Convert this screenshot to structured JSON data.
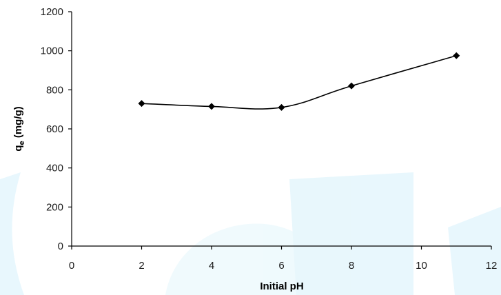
{
  "chart_data": {
    "type": "line",
    "title": "",
    "xlabel": "Initial pH",
    "ylabel_main": "q",
    "ylabel_sub": "e",
    "ylabel_unit": " (mg/g)",
    "xlim": [
      0,
      12
    ],
    "ylim": [
      0,
      1200
    ],
    "x_ticks": [
      "0",
      "2",
      "4",
      "6",
      "8",
      "10",
      "12"
    ],
    "y_ticks": [
      "0",
      "200",
      "400",
      "600",
      "800",
      "1000",
      "1200"
    ],
    "grid": false,
    "legend": "none",
    "smooth": true,
    "marker": "diamond",
    "series": [
      {
        "x": [
          2,
          4,
          6,
          8,
          11
        ],
        "values": [
          730,
          715,
          710,
          820,
          975
        ]
      }
    ],
    "colors": {
      "line": "#000000",
      "axis": "#000000",
      "watermark": "#d6f1fb"
    }
  }
}
